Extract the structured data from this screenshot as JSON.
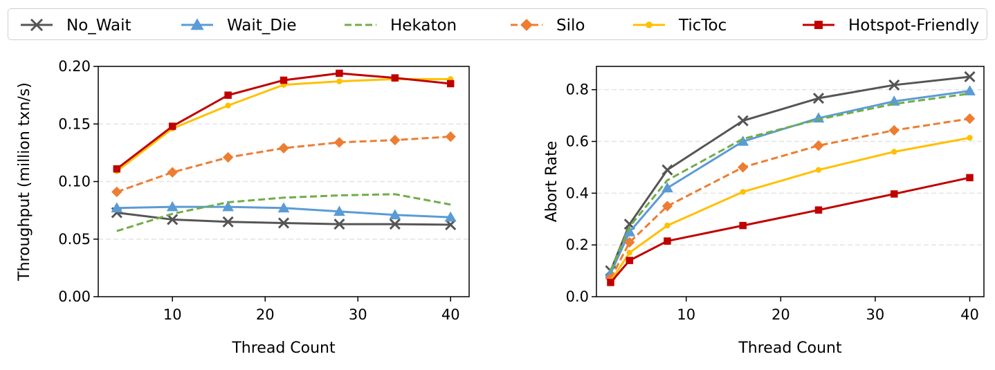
{
  "legend": {
    "placement": "top-center",
    "entries": [
      {
        "name": "No_Wait",
        "color": "#555555",
        "marker": "x",
        "dash": "solid"
      },
      {
        "name": "Wait_Die",
        "color": "#5b9bd5",
        "marker": "triangle",
        "dash": "solid"
      },
      {
        "name": "Hekaton",
        "color": "#70ad47",
        "marker": "none",
        "dash": "dashed"
      },
      {
        "name": "Silo",
        "color": "#ed7d31",
        "marker": "diamond",
        "dash": "dashed"
      },
      {
        "name": "TicToc",
        "color": "#ffc000",
        "marker": "circle",
        "dash": "solid"
      },
      {
        "name": "Hotspot-Friendly",
        "color": "#c00000",
        "marker": "square",
        "dash": "solid"
      }
    ]
  },
  "chart_data": [
    {
      "type": "line",
      "title": "",
      "xlabel": "Thread Count",
      "ylabel": "Throughput (million txn/s)",
      "xlim": [
        2,
        42
      ],
      "ylim": [
        0,
        0.2
      ],
      "xticks": [
        10,
        20,
        30,
        40
      ],
      "yticks": [
        0.0,
        0.05,
        0.1,
        0.15,
        0.2
      ],
      "ytick_labels": [
        "0.00",
        "0.05",
        "0.10",
        "0.15",
        "0.20"
      ],
      "grid": "horizontal dashed",
      "x": [
        4,
        10,
        16,
        22,
        28,
        34,
        40
      ],
      "series": [
        {
          "name": "No_Wait",
          "values": [
            0.073,
            0.067,
            0.065,
            0.064,
            0.063,
            0.063,
            0.0625
          ]
        },
        {
          "name": "Wait_Die",
          "values": [
            0.077,
            0.078,
            0.078,
            0.077,
            0.074,
            0.071,
            0.069
          ]
        },
        {
          "name": "Hekaton",
          "values": [
            0.057,
            0.072,
            0.082,
            0.086,
            0.088,
            0.089,
            0.08
          ]
        },
        {
          "name": "Silo",
          "values": [
            0.091,
            0.108,
            0.121,
            0.129,
            0.134,
            0.136,
            0.139
          ]
        },
        {
          "name": "TicToc",
          "values": [
            0.109,
            0.146,
            0.166,
            0.184,
            0.187,
            0.189,
            0.189
          ]
        },
        {
          "name": "Hotspot-Friendly",
          "values": [
            0.111,
            0.148,
            0.175,
            0.188,
            0.194,
            0.19,
            0.185
          ]
        }
      ]
    },
    {
      "type": "line",
      "title": "",
      "xlabel": "Thread Count",
      "ylabel": "Abort Rate",
      "xlim": [
        0.5,
        41.5
      ],
      "ylim": [
        0,
        0.89
      ],
      "xticks": [
        10,
        20,
        30,
        40
      ],
      "yticks": [
        0.0,
        0.2,
        0.4,
        0.6,
        0.8
      ],
      "ytick_labels": [
        "0.0",
        "0.2",
        "0.4",
        "0.6",
        "0.8"
      ],
      "grid": "horizontal dashed",
      "x": [
        2,
        4,
        8,
        16,
        24,
        32,
        40
      ],
      "series": [
        {
          "name": "No_Wait",
          "values": [
            0.1,
            0.28,
            0.49,
            0.68,
            0.767,
            0.818,
            0.85
          ]
        },
        {
          "name": "Wait_Die",
          "values": [
            0.09,
            0.25,
            0.42,
            0.6,
            0.69,
            0.755,
            0.795
          ]
        },
        {
          "name": "Hekaton",
          "values": [
            0.1,
            0.27,
            0.45,
            0.61,
            0.685,
            0.745,
            0.785
          ]
        },
        {
          "name": "Silo",
          "values": [
            0.07,
            0.21,
            0.35,
            0.5,
            0.584,
            0.643,
            0.688
          ]
        },
        {
          "name": "TicToc",
          "values": [
            0.06,
            0.17,
            0.275,
            0.405,
            0.49,
            0.56,
            0.614
          ]
        },
        {
          "name": "Hotspot-Friendly",
          "values": [
            0.055,
            0.14,
            0.215,
            0.275,
            0.335,
            0.397,
            0.46
          ]
        }
      ]
    }
  ]
}
